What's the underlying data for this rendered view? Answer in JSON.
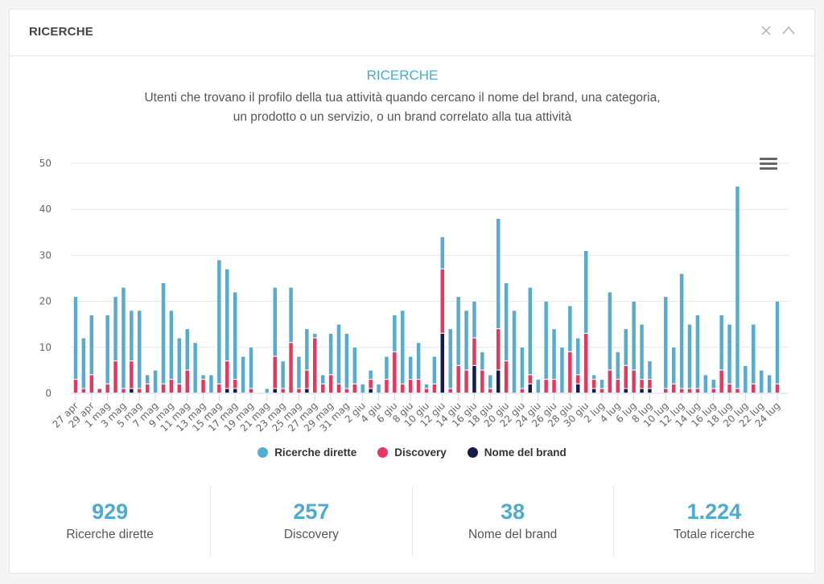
{
  "header": {
    "title": "RICERCHE",
    "close_icon": "close-icon",
    "collapse_icon": "chevron-up-icon"
  },
  "colors": {
    "direct": "#56acd0",
    "discovery": "#e8365d",
    "brand": "#141b4d",
    "accent": "#4eaace"
  },
  "menu_icon": "hamburger-menu-icon",
  "chart_data": {
    "type": "bar",
    "stacked": true,
    "title": "RICERCHE",
    "subtitle": "Utenti che trovano il profilo della tua attività quando cercano il nome del brand, una categoria, un prodotto o un servizio, o un brand correlato alla tua attività",
    "xlabel": "",
    "ylabel": "",
    "ylim": [
      0,
      50
    ],
    "yticks": [
      "0",
      "10",
      "20",
      "30",
      "40",
      "50"
    ],
    "grid": true,
    "legend_position": "bottom",
    "categories": [
      "27 apr",
      "28 apr",
      "29 apr",
      "30 apr",
      "1 mag",
      "2 mag",
      "3 mag",
      "4 mag",
      "5 mag",
      "6 mag",
      "7 mag",
      "8 mag",
      "9 mag",
      "10 mag",
      "11 mag",
      "12 mag",
      "13 mag",
      "14 mag",
      "15 mag",
      "16 mag",
      "17 mag",
      "18 mag",
      "19 mag",
      "20 mag",
      "21 mag",
      "22 mag",
      "23 mag",
      "24 mag",
      "25 mag",
      "26 mag",
      "27 mag",
      "28 mag",
      "29 mag",
      "30 mag",
      "31 mag",
      "1 giu",
      "2 giu",
      "3 giu",
      "4 giu",
      "5 giu",
      "6 giu",
      "7 giu",
      "8 giu",
      "9 giu",
      "10 giu",
      "11 giu",
      "12 giu",
      "13 giu",
      "14 giu",
      "15 giu",
      "16 giu",
      "17 giu",
      "18 giu",
      "19 giu",
      "20 giu",
      "21 giu",
      "22 giu",
      "23 giu",
      "24 giu",
      "25 giu",
      "26 giu",
      "27 giu",
      "28 giu",
      "29 giu",
      "30 giu",
      "1 lug",
      "2 lug",
      "3 lug",
      "4 lug",
      "5 lug",
      "6 lug",
      "7 lug",
      "8 lug",
      "9 lug",
      "10 lug",
      "11 lug",
      "12 lug",
      "13 lug",
      "14 lug",
      "15 lug",
      "16 lug",
      "17 lug",
      "18 lug",
      "19 lug",
      "20 lug",
      "21 lug",
      "22 lug",
      "23 lug",
      "24 lug"
    ],
    "tick_labels": [
      "27 apr",
      "29 apr",
      "1 mag",
      "3 mag",
      "5 mag",
      "7 mag",
      "9 mag",
      "11 mag",
      "13 mag",
      "15 mag",
      "17 mag",
      "19 mag",
      "21 mag",
      "23 mag",
      "25 mag",
      "27 mag",
      "29 mag",
      "31 mag",
      "2 giu",
      "4 giu",
      "6 giu",
      "8 giu",
      "10 giu",
      "12 giu",
      "14 giu",
      "16 giu",
      "18 giu",
      "20 giu",
      "22 giu",
      "24 giu",
      "26 giu",
      "28 giu",
      "30 giu",
      "2 lug",
      "4 lug",
      "6 lug",
      "8 lug",
      "10 lug",
      "12 lug",
      "14 lug",
      "16 lug",
      "18 lug",
      "20 lug",
      "22 lug",
      "24 lug"
    ],
    "series": [
      {
        "name": "Nome del brand",
        "color_key": "brand",
        "values": [
          0,
          0,
          0,
          0,
          0,
          0,
          0,
          1,
          0,
          0,
          0,
          0,
          0,
          0,
          0,
          0,
          0,
          0,
          0,
          1,
          1,
          0,
          0,
          0,
          0,
          1,
          0,
          0,
          0,
          1,
          0,
          0,
          0,
          0,
          0,
          0,
          0,
          1,
          0,
          0,
          0,
          0,
          0,
          0,
          0,
          0,
          13,
          0,
          0,
          0,
          6,
          0,
          0,
          5,
          0,
          0,
          0,
          2,
          0,
          0,
          0,
          0,
          0,
          2,
          0,
          1,
          0,
          0,
          0,
          1,
          0,
          1,
          1,
          0,
          0,
          0,
          0,
          0,
          0,
          0,
          0,
          0,
          0,
          0,
          0,
          0,
          0,
          0,
          0
        ]
      },
      {
        "name": "Discovery",
        "color_key": "discovery",
        "values": [
          3,
          1,
          4,
          1,
          2,
          7,
          1,
          6,
          1,
          2,
          0,
          2,
          3,
          2,
          5,
          0,
          3,
          0,
          2,
          6,
          2,
          0,
          1,
          0,
          0,
          7,
          1,
          11,
          1,
          4,
          12,
          2,
          4,
          2,
          1,
          2,
          0,
          2,
          0,
          3,
          9,
          2,
          3,
          3,
          1,
          2,
          14,
          1,
          6,
          5,
          6,
          5,
          1,
          9,
          7,
          0,
          1,
          2,
          0,
          3,
          3,
          0,
          9,
          2,
          13,
          2,
          1,
          5,
          3,
          5,
          5,
          2,
          2,
          0,
          1,
          2,
          1,
          1,
          1,
          0,
          1,
          5,
          2,
          1,
          0,
          2,
          0,
          0,
          2
        ]
      },
      {
        "name": "Ricerche dirette",
        "color_key": "direct",
        "values": [
          18,
          11,
          13,
          0,
          15,
          14,
          22,
          11,
          17,
          2,
          5,
          22,
          15,
          10,
          9,
          11,
          1,
          4,
          27,
          20,
          19,
          8,
          9,
          0,
          1,
          15,
          6,
          12,
          7,
          9,
          1,
          2,
          9,
          13,
          12,
          8,
          2,
          2,
          2,
          5,
          8,
          16,
          5,
          8,
          1,
          6,
          7,
          13,
          15,
          13,
          8,
          4,
          3,
          24,
          17,
          18,
          9,
          19,
          3,
          17,
          11,
          10,
          10,
          8,
          18,
          1,
          2,
          17,
          6,
          8,
          15,
          12,
          4,
          0,
          20,
          8,
          25,
          14,
          16,
          4,
          2,
          12,
          13,
          44,
          6,
          13,
          5,
          4,
          18
        ]
      }
    ]
  },
  "legend": [
    {
      "label": "Ricerche dirette",
      "color_key": "direct"
    },
    {
      "label": "Discovery",
      "color_key": "discovery"
    },
    {
      "label": "Nome del brand",
      "color_key": "brand"
    }
  ],
  "stats": [
    {
      "value": "929",
      "label": "Ricerche dirette"
    },
    {
      "value": "257",
      "label": "Discovery"
    },
    {
      "value": "38",
      "label": "Nome del brand"
    },
    {
      "value": "1.224",
      "label": "Totale ricerche"
    }
  ]
}
